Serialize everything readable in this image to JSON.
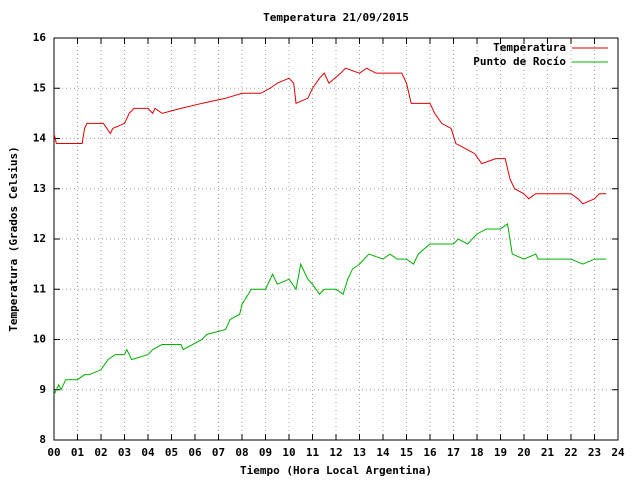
{
  "chart_data": {
    "type": "line",
    "title": "Temperatura 21/09/2015",
    "x_label": "Tiempo (Hora Local Argentina)",
    "y_label": "Temperatura (Grados Celsius)",
    "xlim": [
      0,
      24
    ],
    "ylim": [
      8,
      16
    ],
    "xticks": [
      {
        "value": 0,
        "label": "00"
      },
      {
        "value": 1,
        "label": "01"
      },
      {
        "value": 2,
        "label": "02"
      },
      {
        "value": 3,
        "label": "03"
      },
      {
        "value": 4,
        "label": "04"
      },
      {
        "value": 5,
        "label": "05"
      },
      {
        "value": 6,
        "label": "06"
      },
      {
        "value": 7,
        "label": "07"
      },
      {
        "value": 8,
        "label": "08"
      },
      {
        "value": 9,
        "label": "09"
      },
      10,
      11,
      12,
      13,
      14,
      15,
      16,
      17,
      18,
      19,
      20,
      21,
      22,
      23,
      24
    ],
    "yticks": [
      8,
      9,
      10,
      11,
      12,
      13,
      14,
      15,
      16
    ],
    "grid": true,
    "legend": "top-right",
    "series": [
      {
        "name": "Temperatura",
        "color": "#e00000",
        "x": [
          0,
          0.1,
          1.2,
          1.3,
          1.4,
          2.1,
          2.4,
          2.5,
          3,
          3.2,
          3.4,
          4,
          4.2,
          4.3,
          4.6,
          5.4,
          6.3,
          7.3,
          8,
          8.8,
          9.2,
          9.5,
          10,
          10.2,
          10.3,
          10.8,
          11,
          11.3,
          11.5,
          11.7,
          12.2,
          12.4,
          13,
          13.3,
          13.7,
          14.4,
          14.8,
          15,
          15.2,
          16,
          16.2,
          16.5,
          16.9,
          17.1,
          17.5,
          17.9,
          18.2,
          18.8,
          19.2,
          19.4,
          19.6,
          20,
          20.2,
          20.5,
          22,
          22.3,
          22.5,
          23,
          23.2,
          23.5
        ],
        "values": [
          14.1,
          13.9,
          13.9,
          14.2,
          14.3,
          14.3,
          14.1,
          14.2,
          14.3,
          14.5,
          14.6,
          14.6,
          14.5,
          14.6,
          14.5,
          14.6,
          14.7,
          14.8,
          14.9,
          14.9,
          15.0,
          15.1,
          15.2,
          15.1,
          14.7,
          14.8,
          15.0,
          15.2,
          15.3,
          15.1,
          15.3,
          15.4,
          15.3,
          15.4,
          15.3,
          15.3,
          15.3,
          15.1,
          14.7,
          14.7,
          14.5,
          14.3,
          14.2,
          13.9,
          13.8,
          13.7,
          13.5,
          13.6,
          13.6,
          13.2,
          13.0,
          12.9,
          12.8,
          12.9,
          12.9,
          12.8,
          12.7,
          12.8,
          12.9,
          12.9
        ]
      },
      {
        "name": "Punto de Rocío",
        "color": "#00b000",
        "x": [
          0,
          0.2,
          0.3,
          0.5,
          1,
          1.3,
          1.5,
          2,
          2.3,
          2.6,
          3,
          3.1,
          3.3,
          4,
          4.2,
          4.6,
          5.4,
          5.5,
          6.3,
          6.5,
          7.3,
          7.5,
          7.9,
          8,
          8.4,
          9,
          9.3,
          9.5,
          10,
          10.3,
          10.5,
          10.8,
          11,
          11.3,
          11.5,
          12,
          12.3,
          12.5,
          12.7,
          13,
          13.4,
          14,
          14.3,
          14.6,
          15,
          15.3,
          15.5,
          16,
          16.5,
          17,
          17.2,
          17.6,
          18,
          18.4,
          19,
          19.3,
          19.5,
          20,
          20.5,
          20.6,
          22,
          22.5,
          23,
          23.5
        ],
        "values": [
          8.9,
          9.1,
          9.0,
          9.2,
          9.2,
          9.3,
          9.3,
          9.4,
          9.6,
          9.7,
          9.7,
          9.8,
          9.6,
          9.7,
          9.8,
          9.9,
          9.9,
          9.8,
          10.0,
          10.1,
          10.2,
          10.4,
          10.5,
          10.7,
          11.0,
          11.0,
          11.3,
          11.1,
          11.2,
          11.0,
          11.5,
          11.2,
          11.1,
          10.9,
          11.0,
          11.0,
          10.9,
          11.2,
          11.4,
          11.5,
          11.7,
          11.6,
          11.7,
          11.6,
          11.6,
          11.5,
          11.7,
          11.9,
          11.9,
          11.9,
          12.0,
          11.9,
          12.1,
          12.2,
          12.2,
          12.3,
          11.7,
          11.6,
          11.7,
          11.6,
          11.6,
          11.5,
          11.6,
          11.6
        ]
      }
    ]
  }
}
